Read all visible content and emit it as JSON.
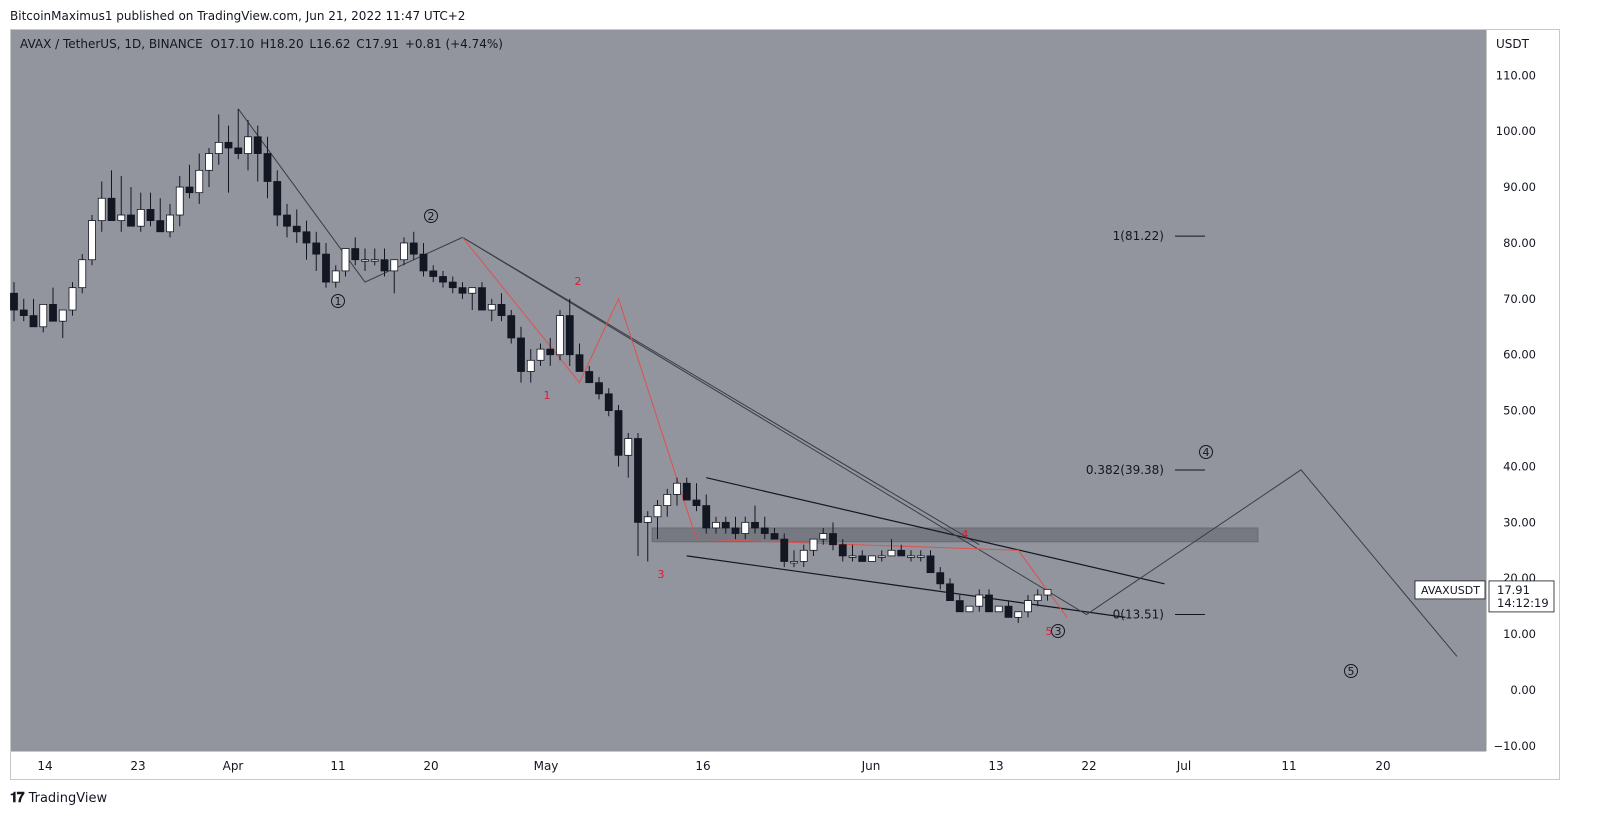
{
  "header": {
    "published": "BitcoinMaximus1 published on TradingView.com, Jun 21, 2022 11:47 UTC+2"
  },
  "legend": {
    "symbol": "AVAX / TetherUS, 1D, BINANCE",
    "o_label": "O",
    "o_value": "17.10",
    "h_label": "H",
    "h_value": "18.20",
    "l_label": "L",
    "l_value": "16.62",
    "c_label": "C",
    "c_value": "17.91",
    "change": "+0.81 (+4.74%)"
  },
  "footer": {
    "brand": "TradingView",
    "logo": "tradingview-logo-icon"
  },
  "colors": {
    "background": "#92959e",
    "up": "#ffffff",
    "down": "#131722",
    "wave": "#e05050",
    "line": "#2a2e39"
  },
  "chart_data": {
    "type": "candlestick",
    "currency_label": "USDT",
    "y_ticks": [
      "110.00",
      "100.00",
      "90.00",
      "80.00",
      "70.00",
      "60.00",
      "50.00",
      "40.00",
      "30.00",
      "20.00",
      "10.00",
      "0.00",
      "−10.00"
    ],
    "ylim": [
      -10,
      110
    ],
    "x_ticks": [
      "14",
      "23",
      "Apr",
      "11",
      "20",
      "May",
      "16",
      "Jun",
      "13",
      "22",
      "Jul",
      "11",
      "20"
    ],
    "price_label": {
      "symbol": "AVAXUSDT",
      "price": "17.91",
      "countdown": "14:12:19",
      "value": 17.91
    },
    "fib_levels": [
      {
        "label": "1(81.22)",
        "value": 81.22
      },
      {
        "label": "0.382(39.38)",
        "value": 39.38
      },
      {
        "label": "0(13.51)",
        "value": 13.51
      }
    ],
    "resistance_zone": [
      26.5,
      29.0
    ],
    "candles": [
      [
        71,
        73,
        66,
        68
      ],
      [
        68,
        70,
        66,
        67
      ],
      [
        67,
        70,
        65,
        65
      ],
      [
        65,
        68,
        64,
        69
      ],
      [
        69,
        72,
        67,
        66
      ],
      [
        66,
        68,
        63,
        68
      ],
      [
        68,
        73,
        67,
        72
      ],
      [
        72,
        78,
        71,
        77
      ],
      [
        77,
        85,
        76,
        84
      ],
      [
        84,
        91,
        82,
        88
      ],
      [
        88,
        93,
        84,
        84
      ],
      [
        84,
        92,
        82,
        85
      ],
      [
        85,
        90,
        83,
        83
      ],
      [
        83,
        89,
        82,
        86
      ],
      [
        86,
        89,
        83,
        84
      ],
      [
        84,
        88,
        82,
        82
      ],
      [
        82,
        87,
        81,
        85
      ],
      [
        85,
        92,
        83,
        90
      ],
      [
        90,
        94,
        88,
        89
      ],
      [
        89,
        96,
        87,
        93
      ],
      [
        93,
        97,
        90,
        96
      ],
      [
        96,
        103,
        94,
        98
      ],
      [
        98,
        101,
        89,
        97
      ],
      [
        97,
        104,
        95,
        96
      ],
      [
        96,
        102,
        93,
        99
      ],
      [
        99,
        101,
        91,
        96
      ],
      [
        96,
        99,
        88,
        91
      ],
      [
        91,
        93,
        83,
        85
      ],
      [
        85,
        87,
        81,
        83
      ],
      [
        83,
        86,
        80,
        82
      ],
      [
        82,
        84,
        77,
        80
      ],
      [
        80,
        82,
        75,
        78
      ],
      [
        78,
        80,
        72,
        73
      ],
      [
        73,
        76,
        72,
        75
      ],
      [
        75,
        78,
        74,
        79
      ],
      [
        79,
        81,
        76,
        77
      ],
      [
        77,
        79,
        75,
        77
      ],
      [
        77,
        79,
        76,
        77
      ],
      [
        77,
        79,
        74,
        75
      ],
      [
        75,
        77,
        71,
        77
      ],
      [
        77,
        81,
        76,
        80
      ],
      [
        80,
        82,
        77,
        78
      ],
      [
        78,
        80,
        74,
        75
      ],
      [
        75,
        76,
        73,
        74
      ],
      [
        74,
        75,
        72,
        73
      ],
      [
        73,
        74,
        71,
        72
      ],
      [
        72,
        73,
        70,
        71
      ],
      [
        71,
        72,
        68,
        72
      ],
      [
        72,
        73,
        68,
        68
      ],
      [
        68,
        70,
        66,
        69
      ],
      [
        69,
        71,
        66,
        67
      ],
      [
        67,
        68,
        62,
        63
      ],
      [
        63,
        65,
        55,
        57
      ],
      [
        57,
        61,
        55,
        59
      ],
      [
        59,
        62,
        58,
        61
      ],
      [
        61,
        63,
        58,
        60
      ],
      [
        60,
        68,
        59,
        67
      ],
      [
        67,
        70,
        58,
        60
      ],
      [
        60,
        62,
        57,
        57
      ],
      [
        57,
        58,
        55,
        55
      ],
      [
        55,
        56,
        52,
        53
      ],
      [
        53,
        54,
        49,
        50
      ],
      [
        50,
        51,
        40,
        42
      ],
      [
        42,
        46,
        38,
        45
      ],
      [
        45,
        46,
        24,
        30
      ],
      [
        30,
        32,
        23,
        31
      ],
      [
        31,
        34,
        27,
        33
      ],
      [
        33,
        36,
        31,
        35
      ],
      [
        35,
        38,
        33,
        37
      ],
      [
        37,
        38,
        34,
        34
      ],
      [
        34,
        37,
        32,
        33
      ],
      [
        33,
        35,
        28,
        29
      ],
      [
        29,
        31,
        28,
        30
      ],
      [
        30,
        31,
        28,
        29
      ],
      [
        29,
        31,
        27,
        28
      ],
      [
        28,
        31,
        27,
        30
      ],
      [
        30,
        33,
        28,
        29
      ],
      [
        29,
        31,
        27,
        28
      ],
      [
        28,
        29,
        27,
        27
      ],
      [
        27,
        28,
        22,
        23
      ],
      [
        23,
        25,
        22,
        23
      ],
      [
        23,
        26,
        22,
        25
      ],
      [
        25,
        27,
        24,
        27
      ],
      [
        27,
        29,
        26,
        28
      ],
      [
        28,
        30,
        25,
        26
      ],
      [
        26,
        27,
        23,
        24
      ],
      [
        24,
        26,
        23,
        24
      ],
      [
        24,
        25,
        23,
        23
      ],
      [
        23,
        24,
        23,
        24
      ],
      [
        24,
        25,
        23,
        24
      ],
      [
        24,
        27,
        24,
        25
      ],
      [
        25,
        26,
        24,
        24
      ],
      [
        24,
        25,
        23,
        24
      ],
      [
        24,
        25,
        23,
        24
      ],
      [
        24,
        25,
        21,
        21
      ],
      [
        21,
        22,
        18,
        19
      ],
      [
        19,
        20,
        16,
        16
      ],
      [
        16,
        17,
        14,
        14
      ],
      [
        14,
        15,
        14,
        15
      ],
      [
        15,
        18,
        14,
        17
      ],
      [
        17,
        18,
        14,
        14
      ],
      [
        14,
        15,
        14,
        15
      ],
      [
        15,
        16,
        13,
        13
      ],
      [
        13,
        14,
        12,
        14
      ],
      [
        14,
        17,
        13,
        16
      ],
      [
        16,
        18,
        15,
        17
      ],
      [
        17,
        18,
        16,
        18
      ]
    ],
    "wave_labels": [
      {
        "text": "①",
        "style": "circled"
      },
      {
        "text": "②",
        "style": "circled"
      },
      {
        "text": "③",
        "style": "circled"
      },
      {
        "text": "④",
        "style": "circled"
      },
      {
        "text": "⑤",
        "style": "circled"
      },
      {
        "text": "1",
        "style": "red"
      },
      {
        "text": "2",
        "style": "red"
      },
      {
        "text": "3",
        "style": "red"
      },
      {
        "text": "4",
        "style": "red"
      },
      {
        "text": "5",
        "style": "red"
      }
    ],
    "wave_points": {
      "primary": [
        [
          23,
          104
        ],
        [
          36,
          73
        ],
        [
          46,
          81
        ],
        [
          110,
          13.5
        ],
        [
          132,
          39.4
        ],
        [
          148,
          6
        ]
      ],
      "minor": [
        [
          46,
          81
        ],
        [
          58,
          55
        ],
        [
          62,
          70
        ],
        [
          70,
          27
        ],
        [
          103,
          25
        ],
        [
          108,
          13
        ]
      ]
    },
    "wedge": {
      "upper": [
        [
          71,
          38
        ],
        [
          118,
          19
        ]
      ],
      "lower": [
        [
          69,
          24
        ],
        [
          114,
          13
        ]
      ]
    },
    "trendline": [
      [
        46,
        81
      ],
      [
        99,
        26
      ]
    ]
  }
}
